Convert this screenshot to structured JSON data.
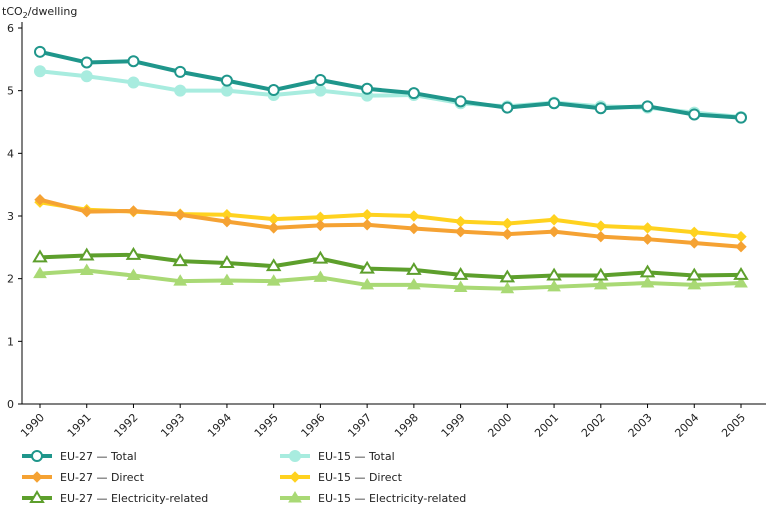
{
  "chart_data": {
    "type": "line",
    "ylabel_prefix": "tCO",
    "ylabel_sub": "2",
    "ylabel_suffix": "/dwelling",
    "ylim": [
      0,
      6
    ],
    "yticks": [
      "0",
      "1",
      "2",
      "3",
      "4",
      "5",
      "6"
    ],
    "x": [
      "1990",
      "1991",
      "1992",
      "1993",
      "1994",
      "1995",
      "1996",
      "1997",
      "1998",
      "1999",
      "2000",
      "2001",
      "2002",
      "2003",
      "2004",
      "2005"
    ],
    "grid": false,
    "legend_position": "bottom",
    "series": [
      {
        "name": "EU-27 — Total",
        "color": "#1f968b",
        "marker": "circle",
        "values": [
          5.62,
          5.45,
          5.47,
          5.3,
          5.16,
          5.01,
          5.17,
          5.03,
          4.96,
          4.83,
          4.73,
          4.8,
          4.72,
          4.75,
          4.62,
          4.57
        ]
      },
      {
        "name": "EU-15 — Total",
        "color": "#a8ecdf",
        "marker": "circle",
        "values": [
          5.31,
          5.23,
          5.13,
          5.0,
          5.0,
          4.93,
          5.0,
          4.92,
          4.93,
          4.8,
          4.75,
          4.81,
          4.75,
          4.73,
          4.65,
          4.58
        ]
      },
      {
        "name": "EU-27 — Direct",
        "color": "#f5a233",
        "marker": "diamond",
        "values": [
          3.26,
          3.07,
          3.08,
          3.02,
          2.91,
          2.81,
          2.85,
          2.86,
          2.8,
          2.75,
          2.71,
          2.75,
          2.67,
          2.63,
          2.57,
          2.51
        ]
      },
      {
        "name": "EU-15 — Direct",
        "color": "#ffd21f",
        "marker": "diamond",
        "values": [
          3.22,
          3.1,
          3.07,
          3.03,
          3.02,
          2.95,
          2.98,
          3.02,
          3.0,
          2.91,
          2.88,
          2.94,
          2.84,
          2.81,
          2.74,
          2.67
        ]
      },
      {
        "name": "EU-27 — Electricity-related",
        "color": "#5d9f2c",
        "marker": "triangle-open",
        "values": [
          2.34,
          2.37,
          2.38,
          2.28,
          2.25,
          2.2,
          2.32,
          2.16,
          2.14,
          2.06,
          2.02,
          2.05,
          2.05,
          2.1,
          2.05,
          2.06
        ]
      },
      {
        "name": "EU-15 — Electricity-related",
        "color": "#a9d975",
        "marker": "triangle",
        "values": [
          2.08,
          2.13,
          2.05,
          1.96,
          1.97,
          1.96,
          2.02,
          1.9,
          1.9,
          1.86,
          1.84,
          1.87,
          1.9,
          1.93,
          1.9,
          1.93
        ]
      }
    ]
  }
}
